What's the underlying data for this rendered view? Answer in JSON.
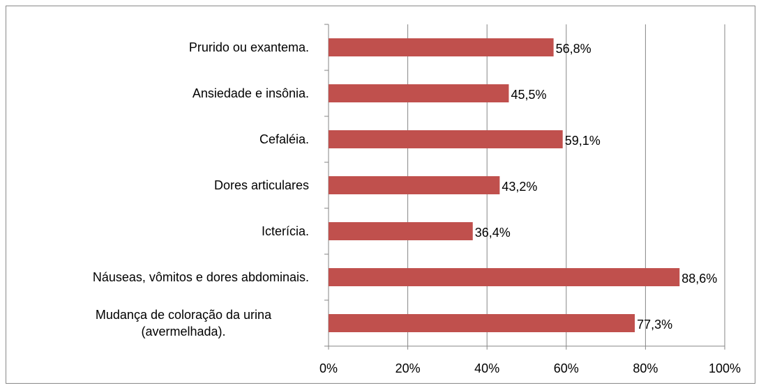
{
  "chart_data": {
    "type": "bar",
    "orientation": "horizontal",
    "categories": [
      "Prurido ou exantema.",
      "Ansiedade e insônia.",
      "Cefaléia.",
      "Dores articulares",
      "Icterícia.",
      "Náuseas, vômitos e dores abdominais.",
      "Mudança de coloração da urina (avermelhada)."
    ],
    "values": [
      56.8,
      45.5,
      59.1,
      43.2,
      36.4,
      88.6,
      77.3
    ],
    "value_labels": [
      "56,8%",
      "45,5%",
      "59,1%",
      "43,2%",
      "36,4%",
      "88,6%",
      "77,3%"
    ],
    "color": "#c0504d",
    "xlim": [
      0,
      100
    ],
    "xticks": [
      {
        "value": 0,
        "label": "0%"
      },
      {
        "value": 20,
        "label": "20%"
      },
      {
        "value": 40,
        "label": "40%"
      },
      {
        "value": 60,
        "label": "60%"
      },
      {
        "value": 80,
        "label": "80%"
      },
      {
        "value": 100,
        "label": "100%"
      }
    ],
    "grid": true
  }
}
